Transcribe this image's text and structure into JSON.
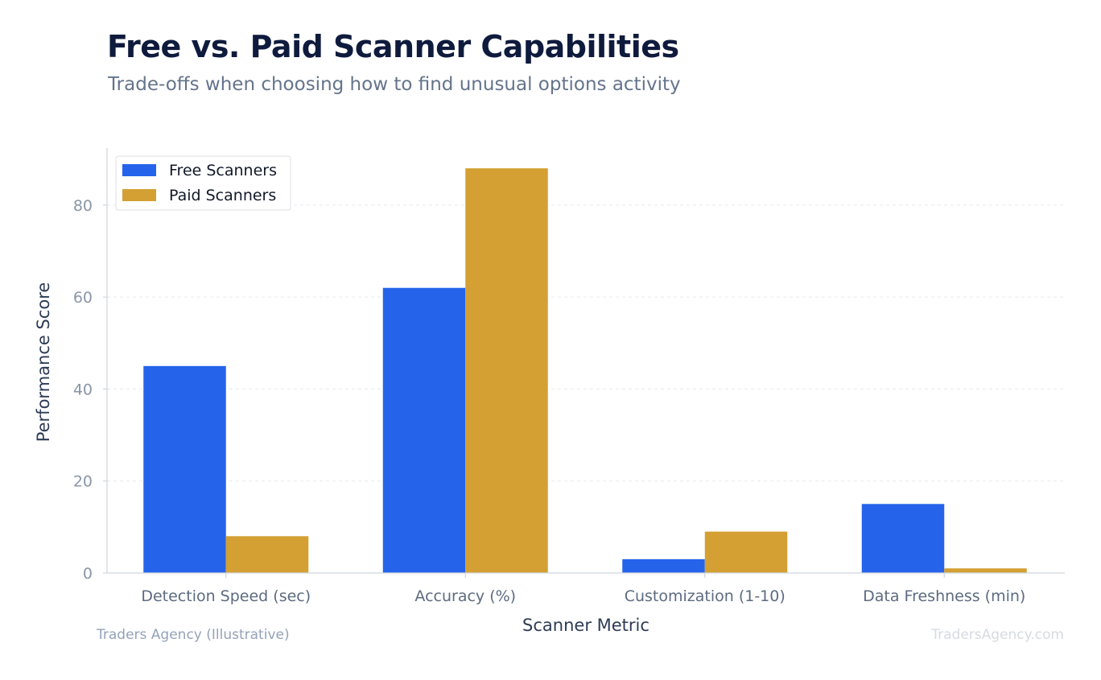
{
  "header": {
    "title": "Free vs. Paid Scanner Capabilities",
    "subtitle": "Trade-offs when choosing how to find unusual options activity"
  },
  "footer": {
    "source": "Traders Agency (Illustrative)",
    "watermark": "TradersAgency.com"
  },
  "chart_data": {
    "type": "bar",
    "categories": [
      "Detection Speed (sec)",
      "Accuracy (%)",
      "Customization (1-10)",
      "Data Freshness (min)"
    ],
    "series": [
      {
        "name": "Free Scanners",
        "values": [
          45,
          62,
          3,
          15
        ],
        "color": "#2563eb"
      },
      {
        "name": "Paid Scanners",
        "values": [
          8,
          88,
          9,
          1
        ],
        "color": "#d4a033"
      }
    ],
    "xlabel": "Scanner Metric",
    "ylabel": "Performance Score",
    "ylim": [
      0,
      92.4
    ],
    "yticks": [
      0,
      20,
      40,
      60,
      80
    ],
    "grid": true,
    "legend": "top-left"
  }
}
